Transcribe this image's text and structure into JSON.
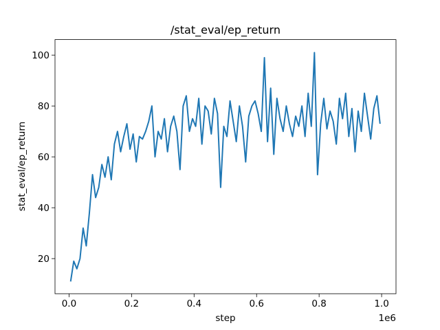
{
  "chart_data": {
    "type": "line",
    "title": "/stat_eval/ep_return",
    "x_label": "step",
    "y_label": "stat_eval/ep_return",
    "x_offset_label": "1e6",
    "x": [
      5000,
      15000,
      25000,
      35000,
      45000,
      55000,
      65000,
      75000,
      85000,
      95000,
      105000,
      115000,
      125000,
      135000,
      145000,
      155000,
      165000,
      175000,
      185000,
      195000,
      205000,
      215000,
      225000,
      235000,
      245000,
      255000,
      265000,
      275000,
      285000,
      295000,
      305000,
      315000,
      325000,
      335000,
      345000,
      355000,
      365000,
      375000,
      385000,
      395000,
      405000,
      415000,
      425000,
      435000,
      445000,
      455000,
      465000,
      475000,
      485000,
      495000,
      505000,
      515000,
      525000,
      535000,
      545000,
      555000,
      565000,
      575000,
      585000,
      595000,
      605000,
      615000,
      625000,
      635000,
      645000,
      655000,
      665000,
      675000,
      685000,
      695000,
      705000,
      715000,
      725000,
      735000,
      745000,
      755000,
      765000,
      775000,
      785000,
      795000,
      805000,
      815000,
      825000,
      835000,
      845000,
      855000,
      865000,
      875000,
      885000,
      895000,
      905000,
      915000,
      925000,
      935000,
      945000,
      955000,
      965000,
      975000,
      985000,
      995000
    ],
    "series": [
      {
        "name": "ep_return",
        "color": "#1f77b4",
        "values": [
          11,
          19,
          16,
          20,
          32,
          25,
          38,
          53,
          44,
          48,
          57,
          52,
          60,
          51,
          65,
          70,
          62,
          68,
          73,
          63,
          69,
          58,
          68,
          67,
          70,
          74,
          80,
          60,
          70,
          67,
          75,
          62,
          72,
          76,
          70,
          55,
          80,
          84,
          70,
          75,
          72,
          83,
          65,
          80,
          78,
          69,
          83,
          77,
          48,
          72,
          68,
          82,
          74,
          66,
          80,
          72,
          58,
          76,
          80,
          82,
          77,
          70,
          99,
          66,
          87,
          61,
          83,
          75,
          70,
          80,
          73,
          68,
          76,
          72,
          80,
          68,
          85,
          72,
          101,
          53,
          73,
          83,
          71,
          78,
          74,
          65,
          83,
          75,
          85,
          68,
          79,
          62,
          78,
          70,
          85,
          76,
          67,
          79,
          84,
          73
        ]
      }
    ],
    "xlim": [
      -45000,
      1046000
    ],
    "ylim": [
      6.2,
      106.1
    ],
    "xticks": [
      {
        "value": 0,
        "label": "0.0"
      },
      {
        "value": 200000,
        "label": "0.2"
      },
      {
        "value": 400000,
        "label": "0.4"
      },
      {
        "value": 600000,
        "label": "0.6"
      },
      {
        "value": 800000,
        "label": "0.8"
      },
      {
        "value": 1000000,
        "label": "1.0"
      }
    ],
    "yticks": [
      20,
      40,
      60,
      80,
      100
    ]
  }
}
